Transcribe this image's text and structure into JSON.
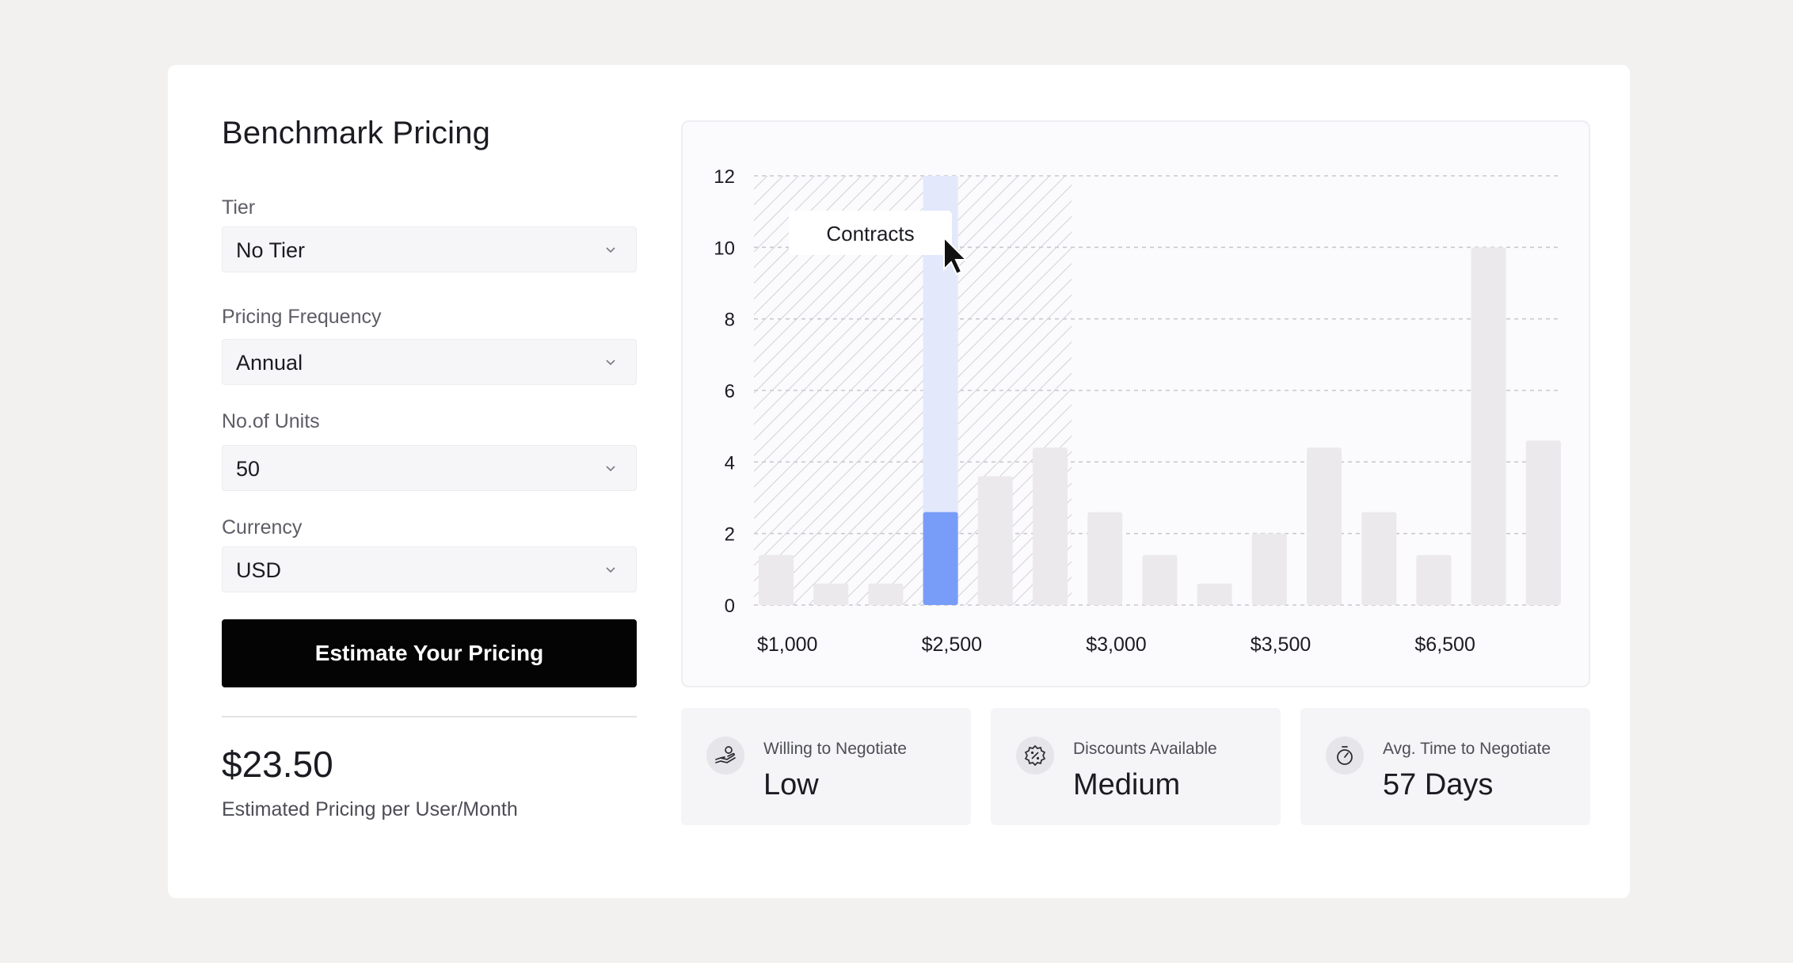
{
  "panel": {
    "title": "Benchmark Pricing"
  },
  "form": {
    "tier": {
      "label": "Tier",
      "value": "No Tier"
    },
    "frequency": {
      "label": "Pricing Frequency",
      "value": "Annual"
    },
    "units": {
      "label": "No.of Units",
      "value": "50"
    },
    "currency": {
      "label": "Currency",
      "value": "USD"
    },
    "submit_label": "Estimate Your Pricing"
  },
  "estimate": {
    "price": "$23.50",
    "caption": "Estimated Pricing per User/Month"
  },
  "chart_data": {
    "type": "bar",
    "y_ticks": [
      0,
      2,
      4,
      6,
      8,
      10,
      12
    ],
    "ylim": [
      0,
      12
    ],
    "x_tick_labels": [
      "$1,000",
      "$2,500",
      "$3,000",
      "$3,500",
      "$6,500"
    ],
    "x_tick_bar_index": [
      0,
      3,
      6,
      9,
      12
    ],
    "values": [
      1.4,
      0.6,
      0.6,
      2.6,
      3.6,
      4.4,
      2.6,
      1.4,
      0.6,
      2.0,
      4.4,
      2.6,
      1.4,
      10.0,
      4.6
    ],
    "highlight_index": 3,
    "hatched_range": [
      0,
      6
    ],
    "tooltip": "Contracts",
    "grid": true,
    "colors": {
      "bar": "#ebe9ec",
      "highlight": "#779df8",
      "highlight_bg": "#e3e9fb",
      "hatch": "#d2d1d6"
    }
  },
  "stats": [
    {
      "label": "Willing to Negotiate",
      "value": "Low",
      "icon": "hand-coin-icon"
    },
    {
      "label": "Discounts Available",
      "value": "Medium",
      "icon": "discount-badge-icon"
    },
    {
      "label": "Avg. Time to Negotiate",
      "value": "57 Days",
      "icon": "stopwatch-icon"
    }
  ]
}
